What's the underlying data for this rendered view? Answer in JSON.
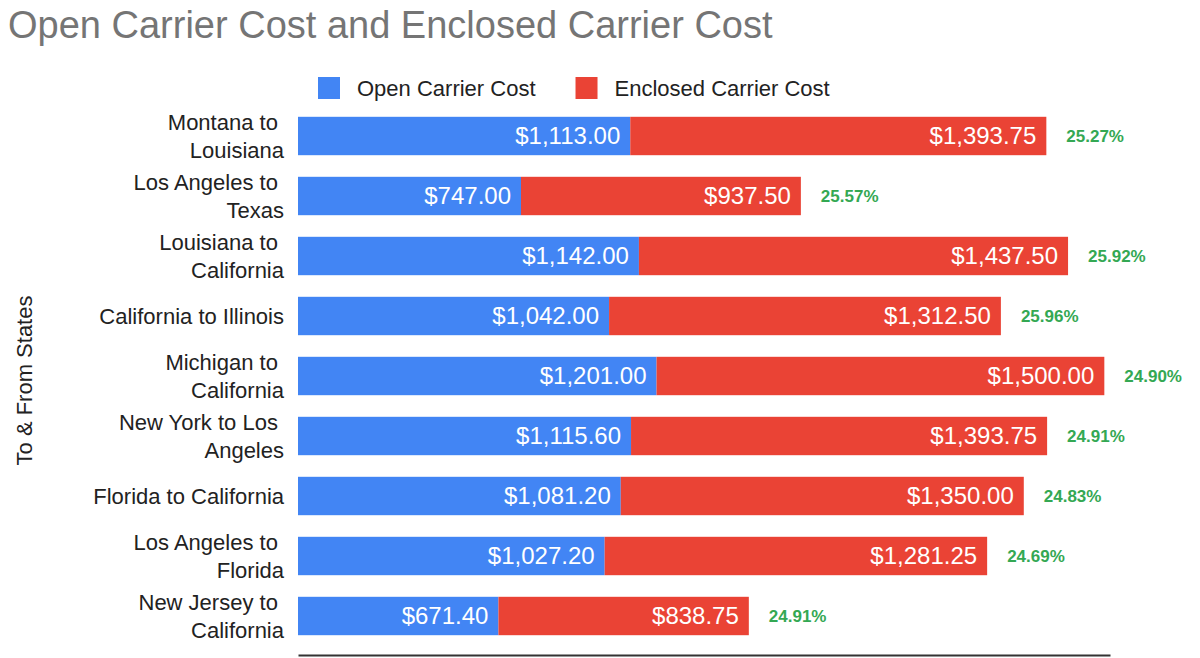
{
  "chart_data": {
    "type": "bar",
    "title": "Open Carrier Cost and Enclosed Carrier Cost",
    "y_label": "To & From States",
    "orientation": "horizontal",
    "stacked": true,
    "data_labels": true,
    "tick_labels": "y",
    "legend": "top",
    "grid": false,
    "categories": [
      "Montana to Louisiana",
      "Los Angeles to Texas",
      "Louisiana to California",
      "California to Illinois",
      "Michigan to California",
      "New York to Los Angeles",
      "Florida to California",
      "Los Angeles to Florida",
      "New Jersey to California"
    ],
    "series": [
      {
        "name": "Open Carrier Cost",
        "color": "#4285f4",
        "values": [
          1113.0,
          747.0,
          1142.0,
          1042.0,
          1201.0,
          1115.6,
          1081.2,
          1027.2,
          671.4
        ],
        "value_labels": [
          "$1,113.00",
          "$747.00",
          "$1,142.00",
          "$1,042.00",
          "$1,201.00",
          "$1,115.60",
          "$1,081.20",
          "$1,027.20",
          "$671.40"
        ]
      },
      {
        "name": "Enclosed Carrier Cost",
        "color": "#ea4335",
        "values": [
          1393.75,
          937.5,
          1437.5,
          1312.5,
          1500.0,
          1393.75,
          1350.0,
          1281.25,
          838.75
        ],
        "value_labels": [
          "$1,393.75",
          "$937.50",
          "$1,437.50",
          "$1,312.50",
          "$1,500.00",
          "$1,393.75",
          "$1,350.00",
          "$1,281.25",
          "$838.75"
        ]
      }
    ],
    "annotations": [
      "25.27%",
      "25.57%",
      "25.92%",
      "25.96%",
      "24.90%",
      "24.91%",
      "24.83%",
      "24.69%",
      "24.91%"
    ],
    "xlim": [
      0,
      2720
    ],
    "xticks": []
  }
}
